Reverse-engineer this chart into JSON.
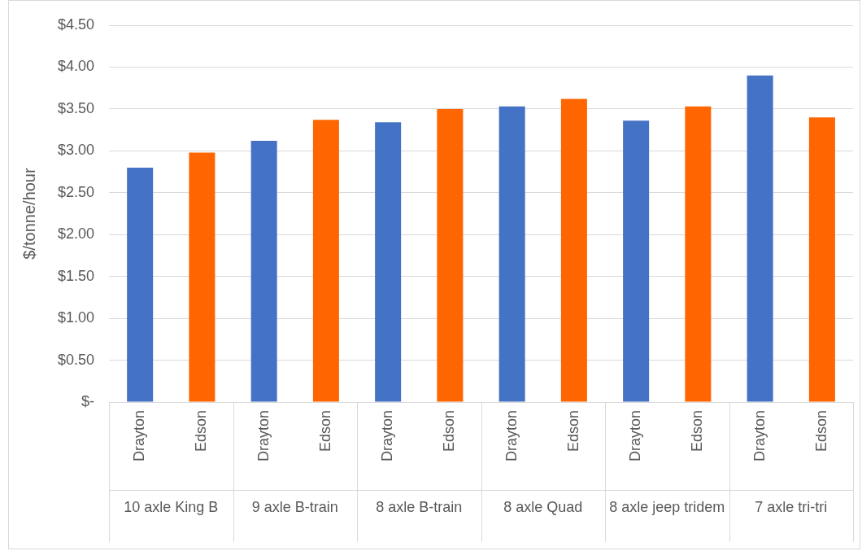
{
  "chart_data": {
    "type": "bar",
    "ylabel": "$/tonne/hour",
    "categories": [
      "10 axle King B",
      "9 axle B-train",
      "8 axle B-train",
      "8 axle Quad",
      "8 axle jeep tridem",
      "7 axle tri-tri"
    ],
    "series": [
      {
        "name": "Drayton",
        "color": "#4472c4",
        "values": [
          2.8,
          3.12,
          3.34,
          3.53,
          3.36,
          3.9
        ]
      },
      {
        "name": "Edson",
        "color": "#ff6600",
        "values": [
          2.98,
          3.37,
          3.5,
          3.62,
          3.53,
          3.4
        ]
      }
    ],
    "ylim": [
      0,
      4.5
    ],
    "yticks": [
      {
        "value": 0,
        "label": "$-"
      },
      {
        "value": 0.5,
        "label": "$0.50"
      },
      {
        "value": 1,
        "label": "$1.00"
      },
      {
        "value": 1.5,
        "label": "$1.50"
      },
      {
        "value": 2,
        "label": "$2.00"
      },
      {
        "value": 2.5,
        "label": "$2.50"
      },
      {
        "value": 3,
        "label": "$3.00"
      },
      {
        "value": 3.5,
        "label": "$3.50"
      },
      {
        "value": 4,
        "label": "$4.00"
      },
      {
        "value": 4.5,
        "label": "$4.50"
      }
    ],
    "grid": "y",
    "legend": false
  }
}
